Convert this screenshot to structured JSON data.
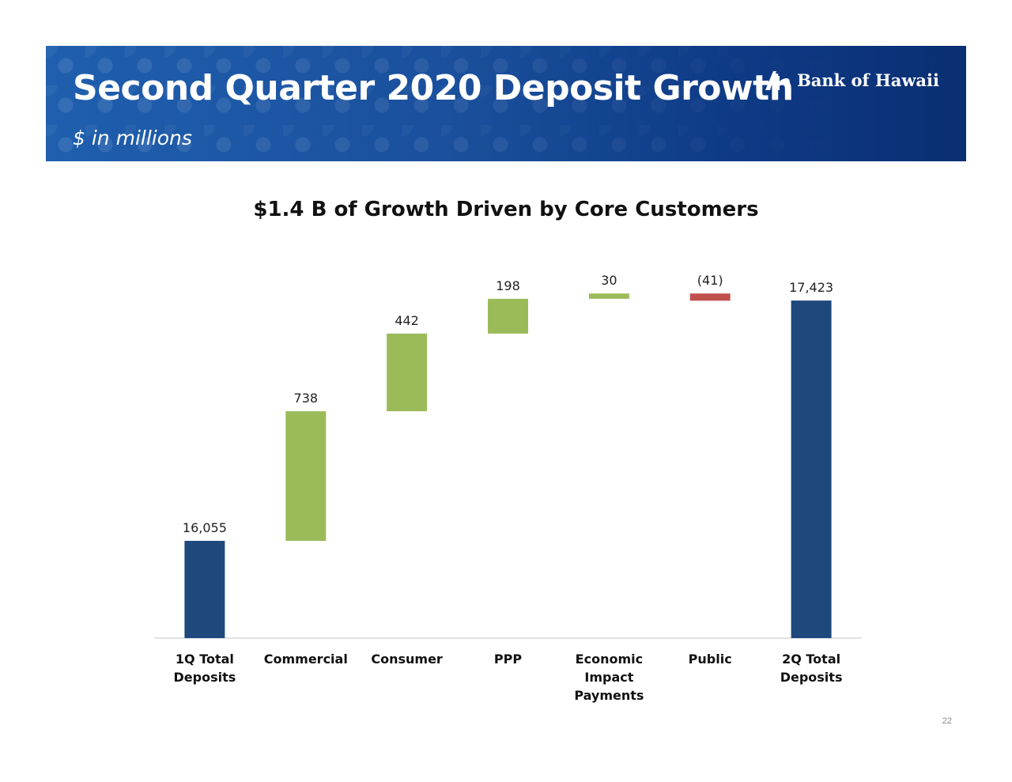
{
  "header": {
    "title": "Second Quarter 2020 Deposit Growth",
    "subtitle": "$ in millions",
    "logo_text": "Bank of Hawaii"
  },
  "page_number": "22",
  "colors": {
    "total": "#1f497d",
    "increase": "#9bbb59",
    "decrease": "#c0504d",
    "banner": "#1a4f9c"
  },
  "chart_data": {
    "type": "bar",
    "subtype": "waterfall",
    "title": "$1.4 B of Growth Driven by Core Customers",
    "categories": [
      [
        "1Q Total",
        "Deposits"
      ],
      [
        "Commercial"
      ],
      [
        "Consumer"
      ],
      [
        "PPP"
      ],
      [
        "Economic",
        "Impact",
        "Payments"
      ],
      [
        "Public"
      ],
      [
        "2Q Total",
        "Deposits"
      ]
    ],
    "values": [
      16055,
      738,
      442,
      198,
      30,
      -41,
      17423
    ],
    "kinds": [
      "total",
      "increase",
      "increase",
      "increase",
      "increase",
      "decrease",
      "total"
    ],
    "labels": [
      "16,055",
      "738",
      "442",
      "198",
      "30",
      "(41)",
      "17,423"
    ],
    "grid": false,
    "legend": "none"
  }
}
